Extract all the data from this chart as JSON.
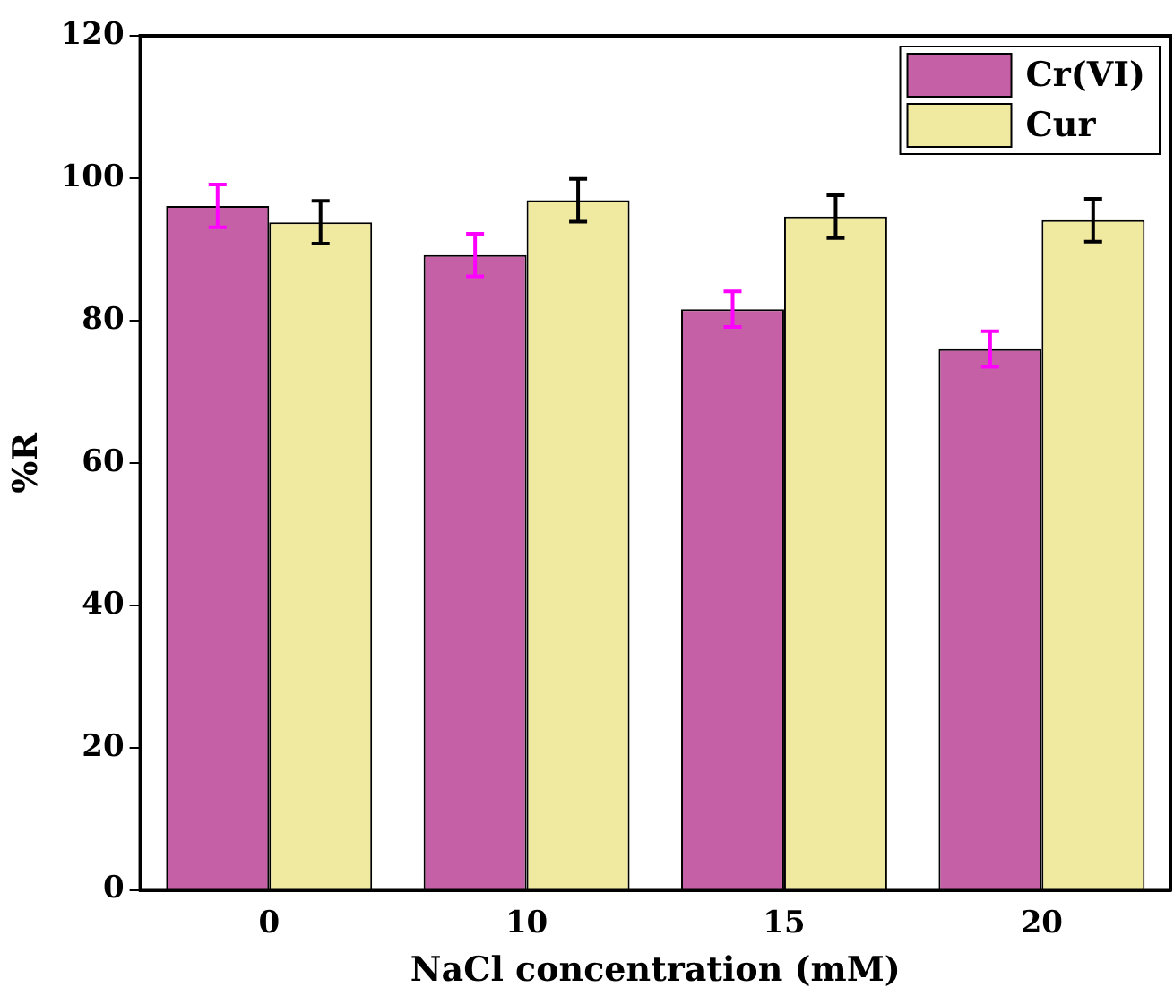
{
  "chart_data": {
    "type": "bar",
    "xlabel": "NaCl concentration (mM)",
    "ylabel": "%R",
    "categories": [
      "0",
      "10",
      "15",
      "20"
    ],
    "series": [
      {
        "name": "Cr(VI)",
        "color": "#c560a6",
        "values": [
          96.1,
          89.2,
          81.6,
          76.0
        ],
        "errors": [
          3,
          3,
          2.5,
          2.5
        ]
      },
      {
        "name": "Cur",
        "color": "#f0e9a0",
        "values": [
          93.8,
          96.9,
          94.6,
          94.1
        ],
        "errors": [
          3,
          3,
          3,
          3
        ]
      }
    ],
    "ylim": [
      0,
      120
    ],
    "yticks": [
      0,
      20,
      40,
      60,
      80,
      100,
      120
    ],
    "grid": false,
    "legend": "top right"
  }
}
